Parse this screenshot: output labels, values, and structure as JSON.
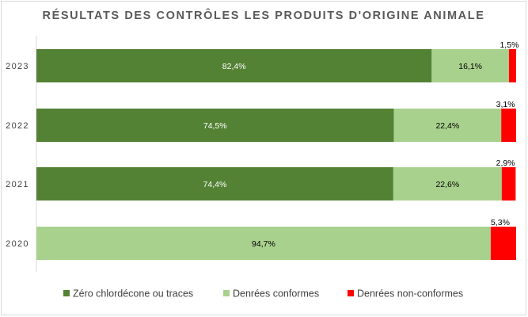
{
  "chart_data": {
    "type": "bar",
    "orientation": "horizontal",
    "stacked": true,
    "normalized": true,
    "title": "RÉSULTATS DES CONTRÔLES LES PRODUITS D'ORIGINE ANIMALE",
    "categories": [
      "2023",
      "2022",
      "2021",
      "2020"
    ],
    "series": [
      {
        "name": "Zéro chlordécone ou traces",
        "color": "#548235",
        "values": [
          82.4,
          74.5,
          74.4,
          0
        ],
        "labels": [
          "82,4%",
          "74,5%",
          "74,4%",
          ""
        ]
      },
      {
        "name": "Denrées conformes",
        "color": "#a9d18e",
        "values": [
          16.1,
          22.4,
          22.6,
          94.7
        ],
        "labels": [
          "16,1%",
          "22,4%",
          "22,6%",
          "94,7%"
        ]
      },
      {
        "name": "Denrées non-conformes",
        "color": "#ff0000",
        "values": [
          1.5,
          3.1,
          2.9,
          5.3
        ],
        "labels": [
          "1,5%",
          "3,1%",
          "2,9%",
          "5,3%"
        ]
      }
    ],
    "xlim": [
      0,
      100
    ],
    "grid": false,
    "legend": "bottom"
  }
}
